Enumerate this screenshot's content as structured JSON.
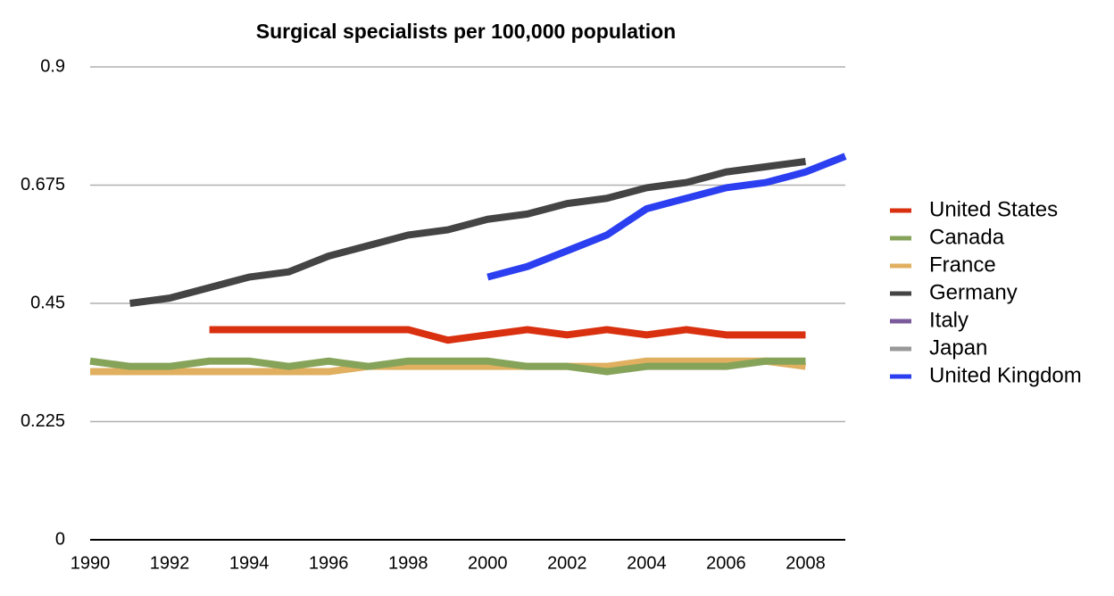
{
  "chart_data": {
    "type": "line",
    "title": "Surgical specialists per 100,000 population",
    "x": [
      1990,
      1991,
      1992,
      1993,
      1994,
      1995,
      1996,
      1997,
      1998,
      1999,
      2000,
      2001,
      2002,
      2003,
      2004,
      2005,
      2006,
      2007,
      2008,
      2009
    ],
    "series": [
      {
        "name": "United States",
        "color": "#d93010",
        "values": [
          null,
          null,
          null,
          0.4,
          0.4,
          0.4,
          0.4,
          0.4,
          0.4,
          0.38,
          0.39,
          0.4,
          0.39,
          0.4,
          0.39,
          0.4,
          0.39,
          0.39,
          0.39,
          null
        ]
      },
      {
        "name": "Canada",
        "color": "#86a35a",
        "values": [
          0.34,
          0.33,
          0.33,
          0.34,
          0.34,
          0.33,
          0.34,
          0.33,
          0.34,
          0.34,
          0.34,
          0.33,
          0.33,
          0.32,
          0.33,
          0.33,
          0.33,
          0.34,
          0.34,
          null
        ]
      },
      {
        "name": "France",
        "color": "#e0b060",
        "values": [
          0.32,
          0.32,
          0.32,
          0.32,
          0.32,
          0.32,
          0.32,
          0.33,
          0.33,
          0.33,
          0.33,
          0.33,
          0.33,
          0.33,
          0.34,
          0.34,
          0.34,
          0.34,
          0.33,
          null
        ]
      },
      {
        "name": "Germany",
        "color": "#444444",
        "values": [
          null,
          0.45,
          0.46,
          0.48,
          0.5,
          0.51,
          0.54,
          0.56,
          0.58,
          0.59,
          0.61,
          0.62,
          0.64,
          0.65,
          0.67,
          0.68,
          0.7,
          0.71,
          0.72,
          null
        ]
      },
      {
        "name": "Italy",
        "color": "#7a5a9a",
        "values": [
          null,
          null,
          null,
          null,
          null,
          null,
          null,
          null,
          null,
          null,
          null,
          null,
          null,
          null,
          null,
          null,
          null,
          null,
          null,
          null
        ]
      },
      {
        "name": "Japan",
        "color": "#999999",
        "values": [
          null,
          null,
          null,
          null,
          null,
          null,
          null,
          null,
          null,
          null,
          null,
          null,
          null,
          null,
          null,
          null,
          null,
          null,
          null,
          null
        ]
      },
      {
        "name": "United Kingdom",
        "color": "#2b3ff0",
        "values": [
          null,
          null,
          null,
          null,
          null,
          null,
          null,
          null,
          null,
          null,
          0.5,
          0.52,
          0.55,
          0.58,
          0.63,
          0.65,
          0.67,
          0.68,
          0.7,
          0.73
        ]
      }
    ],
    "xlim": [
      1990,
      2009
    ],
    "xticks": [
      1990,
      1992,
      1994,
      1996,
      1998,
      2000,
      2002,
      2004,
      2006,
      2008
    ],
    "ylim": [
      0,
      0.9
    ],
    "yticks": [
      0,
      0.225,
      0.45,
      0.675,
      0.9
    ],
    "grid": true,
    "legend": "right"
  }
}
